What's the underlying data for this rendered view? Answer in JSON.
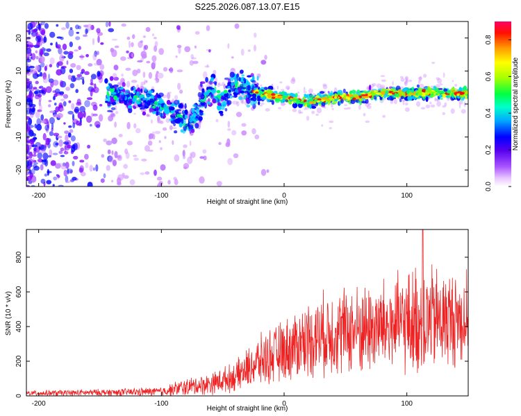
{
  "title": "S225.2026.087.13.07.E15",
  "chart_data": [
    {
      "type": "heatmap",
      "name": "spectrogram",
      "xlabel": "Height of straight line (km)",
      "ylabel": "Frequency (Hz)",
      "xlim": [
        -210,
        150
      ],
      "ylim": [
        -25,
        25
      ],
      "x_ticks": [
        -200,
        -100,
        0,
        100
      ],
      "y_ticks": [
        -20,
        -10,
        0,
        10,
        20
      ],
      "colorbar": {
        "label": "Normalized spectral amplitude",
        "range": [
          0.0,
          0.9
        ],
        "ticks": [
          0.0,
          0.2,
          0.4,
          0.6,
          0.8
        ],
        "colormap": [
          "#ffffff",
          "#cc88ff",
          "#7b00ff",
          "#0000ff",
          "#00ccff",
          "#00ff66",
          "#88ff00",
          "#ffff00",
          "#ffaa00",
          "#ff0000",
          "#ff0066"
        ]
      },
      "signal_track": [
        {
          "x": -140,
          "y": 3
        },
        {
          "x": -125,
          "y": 2
        },
        {
          "x": -110,
          "y": 1
        },
        {
          "x": -95,
          "y": -2
        },
        {
          "x": -85,
          "y": -4
        },
        {
          "x": -75,
          "y": -6
        },
        {
          "x": -62,
          "y": 5
        },
        {
          "x": -50,
          "y": 1
        },
        {
          "x": -40,
          "y": 6
        },
        {
          "x": -25,
          "y": 4
        },
        {
          "x": -15,
          "y": 3
        },
        {
          "x": 0,
          "y": 2
        },
        {
          "x": 20,
          "y": 0.5
        },
        {
          "x": 40,
          "y": 2
        },
        {
          "x": 60,
          "y": 2
        },
        {
          "x": 80,
          "y": 3.5
        },
        {
          "x": 100,
          "y": 3
        },
        {
          "x": 120,
          "y": 3.5
        },
        {
          "x": 150,
          "y": 3
        }
      ]
    },
    {
      "type": "line",
      "name": "snr",
      "xlabel": "Height of straight line (km)",
      "ylabel": "SNR (10 * v/v)",
      "xlim": [
        -210,
        150
      ],
      "ylim": [
        0,
        960
      ],
      "x_ticks": [
        -200,
        -100,
        0,
        100
      ],
      "y_ticks": [
        0,
        200,
        400,
        600,
        800
      ],
      "color": "#ee2222",
      "envelope": [
        {
          "x": -210,
          "mean": 15,
          "spread": 15
        },
        {
          "x": -140,
          "mean": 20,
          "spread": 20
        },
        {
          "x": -100,
          "mean": 25,
          "spread": 25
        },
        {
          "x": -85,
          "mean": 45,
          "spread": 45
        },
        {
          "x": -60,
          "mean": 70,
          "spread": 60
        },
        {
          "x": -40,
          "mean": 110,
          "spread": 80
        },
        {
          "x": -20,
          "mean": 200,
          "spread": 140
        },
        {
          "x": 0,
          "mean": 260,
          "spread": 170
        },
        {
          "x": 20,
          "mean": 330,
          "spread": 210
        },
        {
          "x": 40,
          "mean": 370,
          "spread": 240
        },
        {
          "x": 60,
          "mean": 380,
          "spread": 250
        },
        {
          "x": 80,
          "mean": 400,
          "spread": 260
        },
        {
          "x": 100,
          "mean": 420,
          "spread": 280
        },
        {
          "x": 110,
          "mean": 430,
          "spread": 320
        },
        {
          "x": 130,
          "mean": 440,
          "spread": 280
        },
        {
          "x": 150,
          "mean": 450,
          "spread": 250
        }
      ],
      "peak": {
        "x": 113,
        "y": 960
      }
    }
  ]
}
